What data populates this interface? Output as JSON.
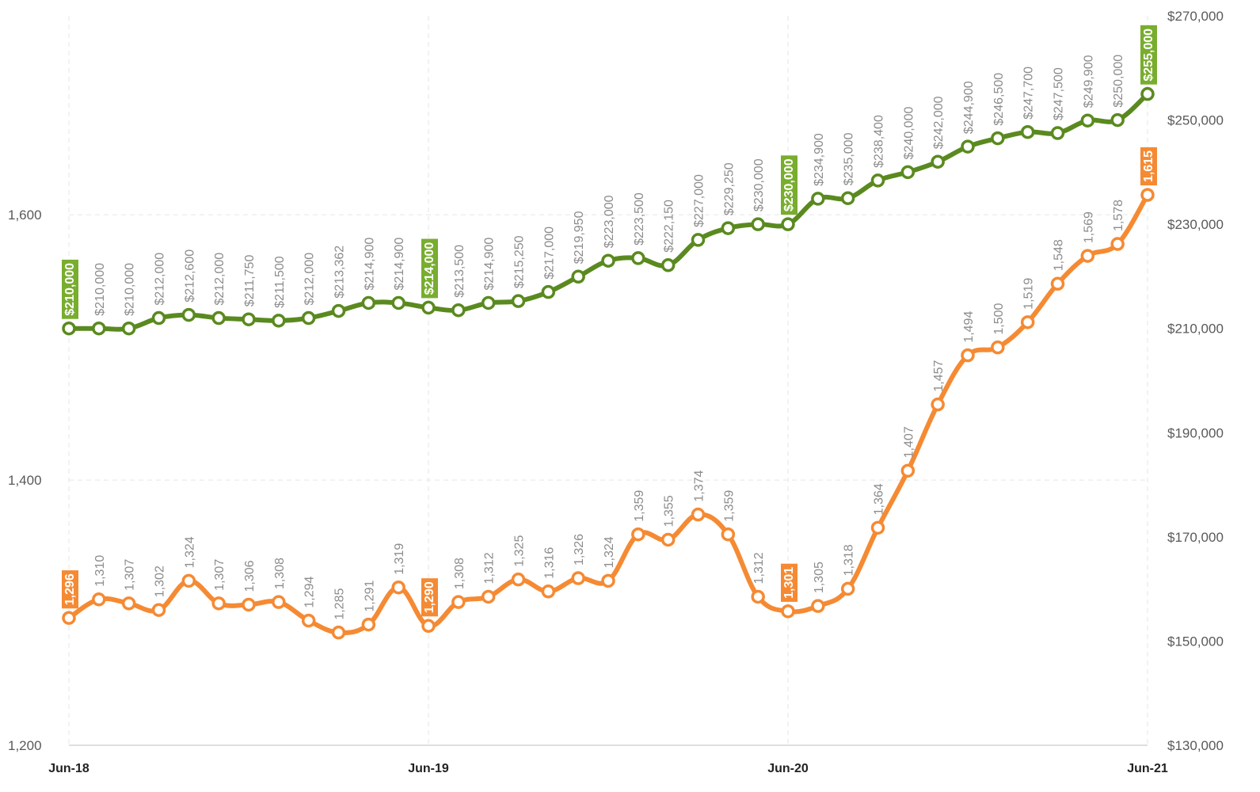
{
  "chart_data": {
    "type": "line",
    "categories": [
      "Jun-18",
      null,
      null,
      null,
      null,
      null,
      null,
      null,
      null,
      null,
      null,
      null,
      "Jun-19",
      null,
      null,
      null,
      null,
      null,
      null,
      null,
      null,
      null,
      null,
      null,
      "Jun-20",
      null,
      null,
      null,
      null,
      null,
      null,
      null,
      null,
      null,
      null,
      null,
      "Jun-21"
    ],
    "ylim": [
      1200,
      1750
    ],
    "yticks": [
      {
        "value": 1200,
        "label": "1,200"
      },
      {
        "value": 1400,
        "label": "1,400"
      },
      {
        "value": 1600,
        "label": "1,600"
      }
    ],
    "y2lim": [
      130000,
      270000
    ],
    "y2ticks": [
      {
        "value": 130000,
        "label": "$130,000"
      },
      {
        "value": 150000,
        "label": "$150,000"
      },
      {
        "value": 170000,
        "label": "$170,000"
      },
      {
        "value": 190000,
        "label": "$190,000"
      },
      {
        "value": 210000,
        "label": "$210,000"
      },
      {
        "value": 230000,
        "label": "$230,000"
      },
      {
        "value": 250000,
        "label": "$250,000"
      },
      {
        "value": 270000,
        "label": "$270,000"
      }
    ],
    "grid": true,
    "highlight": [
      0,
      12,
      24,
      36
    ],
    "series": [
      {
        "color": "#5a8a1f",
        "label_color": "#78ad2e",
        "axis": "y2",
        "values": [
          210000,
          210000,
          210000,
          212000,
          212600,
          212000,
          211750,
          211500,
          212000,
          213362,
          214900,
          214900,
          214000,
          213500,
          214900,
          215250,
          217000,
          219950,
          223000,
          223500,
          222150,
          227000,
          229250,
          230000,
          230000,
          234900,
          235000,
          238400,
          240000,
          242000,
          244900,
          246500,
          247700,
          247500,
          249900,
          250000,
          255000
        ],
        "value_labels": [
          "$210,000",
          "$210,000",
          "$210,000",
          "$212,000",
          "$212,600",
          "$212,000",
          "$211,750",
          "$211,500",
          "$212,000",
          "$213,362",
          "$214,900",
          "$214,900",
          "$214,000",
          "$213,500",
          "$214,900",
          "$215,250",
          "$217,000",
          "$219,950",
          "$223,000",
          "$223,500",
          "$222,150",
          "$227,000",
          "$229,250",
          "$230,000",
          "$230,000",
          "$234,900",
          "$235,000",
          "$238,400",
          "$240,000",
          "$242,000",
          "$244,900",
          "$246,500",
          "$247,700",
          "$247,500",
          "$249,900",
          "$250,000",
          "$255,000"
        ]
      },
      {
        "color": "#f58a33",
        "label_color": "#f58a33",
        "axis": "y",
        "values": [
          1296,
          1310,
          1307,
          1302,
          1324,
          1307,
          1306,
          1308,
          1294,
          1285,
          1291,
          1319,
          1290,
          1308,
          1312,
          1325,
          1316,
          1326,
          1324,
          1359,
          1355,
          1374,
          1359,
          1312,
          1301,
          1305,
          1318,
          1364,
          1407,
          1457,
          1494,
          1500,
          1519,
          1548,
          1569,
          1578,
          1615
        ],
        "value_labels": [
          "1,296",
          "1,310",
          "1,307",
          "1,302",
          "1,324",
          "1,307",
          "1,306",
          "1,308",
          "1,294",
          "1,285",
          "1,291",
          "1,319",
          "1,290",
          "1,308",
          "1,312",
          "1,325",
          "1,316",
          "1,326",
          "1,324",
          "1,359",
          "1,355",
          "1,374",
          "1,359",
          "1,312",
          "1,301",
          "1,305",
          "1,318",
          "1,364",
          "1,407",
          "1,457",
          "1,494",
          "1,500",
          "1,519",
          "1,548",
          "1,569",
          "1,578",
          "1,615"
        ]
      }
    ]
  }
}
